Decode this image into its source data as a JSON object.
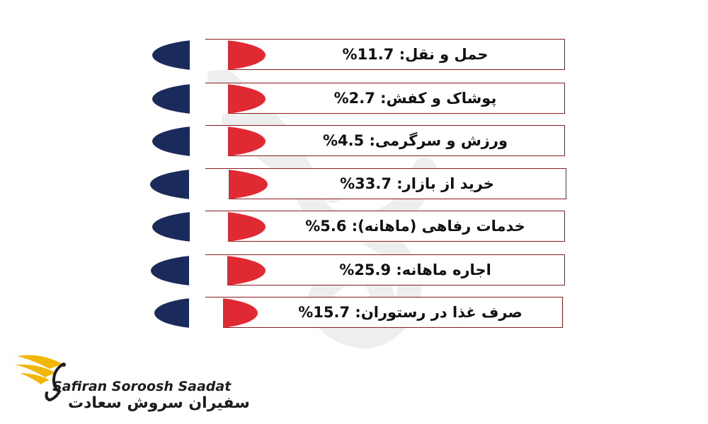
{
  "items": [
    {
      "label": "حمل و نقل: 11.7%",
      "flag_colors": [
        "#1a2a5a",
        "#ffffff",
        "#e02a33"
      ]
    },
    {
      "label": "پوشاک و کفش: 2.7%",
      "flag_colors": [
        "#1a2a5a",
        "#ffffff",
        "#e02a33"
      ]
    },
    {
      "label": "ورزش و سرگرمی: 4.5%",
      "flag_colors": [
        "#1a2a5a",
        "#ffffff",
        "#e02a33"
      ]
    },
    {
      "label": "خرید از بازار: 33.7%",
      "flag_colors": [
        "#1a2a5a",
        "#ffffff",
        "#e02a33"
      ]
    },
    {
      "label": "خدمات رفاهی (ماهانه): 5.6%",
      "flag_colors": [
        "#1a2a5a",
        "#ffffff",
        "#e02a33"
      ]
    },
    {
      "label": "اجاره ماهانه: 25.9%",
      "flag_colors": [
        "#1a2a5a",
        "#ffffff",
        "#e02a33"
      ]
    },
    {
      "label": "صرف غذا در رستوران: 15.7%",
      "flag_colors": [
        "#1a2a5a",
        "#ffffff",
        "#e02a33"
      ]
    }
  ],
  "brand": {
    "name_en": "Safiran Soroosh Saadat",
    "name_fa": "سفیران سروش سعادت"
  },
  "colors": {
    "bar_border": "#8a1b21",
    "logo_gold": "#f2b705"
  }
}
